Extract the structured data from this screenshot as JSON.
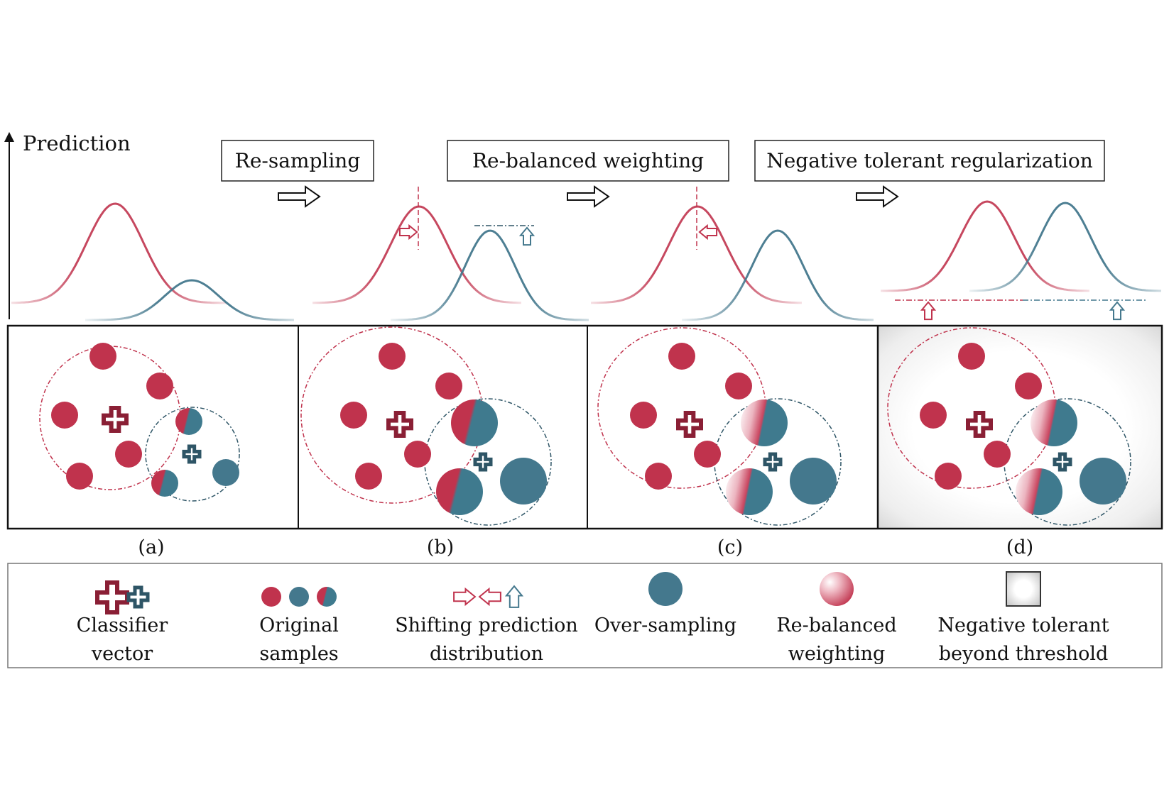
{
  "axis": {
    "ylabel": "Prediction"
  },
  "steps": [
    {
      "label": "Re-sampling"
    },
    {
      "label": "Re-balanced weighting"
    },
    {
      "label": "Negative tolerant regularization"
    }
  ],
  "panels": [
    {
      "label": "(a)"
    },
    {
      "label": "(b)"
    },
    {
      "label": "(c)"
    },
    {
      "label": "(d)"
    }
  ],
  "legend": [
    {
      "line1": "Classifier",
      "line2": "vector",
      "icon": "classifier-vector-icon"
    },
    {
      "line1": "Original",
      "line2": "samples",
      "icon": "original-samples-icon"
    },
    {
      "line1": "Shifting prediction",
      "line2": "distribution",
      "icon": "shift-arrows-icon"
    },
    {
      "line1": "Over-sampling",
      "line2": "",
      "icon": "oversampling-icon"
    },
    {
      "line1": "Re-balanced",
      "line2": "weighting",
      "icon": "reweighting-icon"
    },
    {
      "line1": "Negative tolerant",
      "line2": "beyond threshold",
      "icon": "negative-tolerant-icon"
    }
  ],
  "colors": {
    "red": "#c0334d",
    "teal": "#44788d",
    "dark_red": "#8a1f35",
    "dark_teal": "#2e5566"
  }
}
